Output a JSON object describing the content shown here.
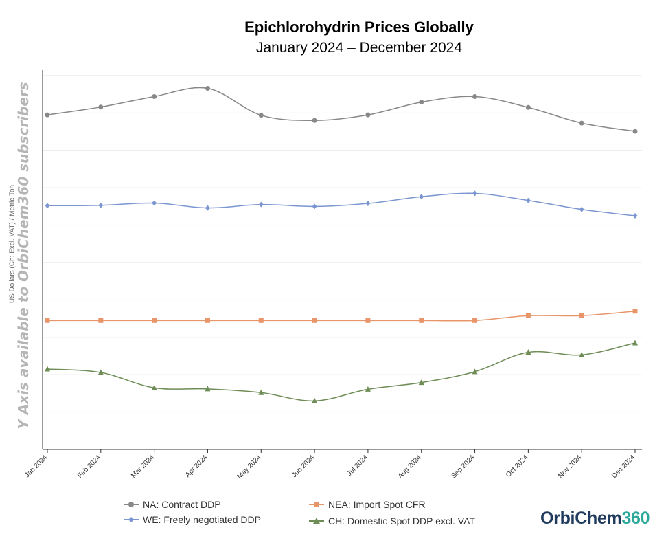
{
  "chart_data": {
    "type": "line",
    "title": "Epichlorohydrin Prices Globally",
    "subtitle": "January 2024 – December 2024",
    "ylabel": "US Dollars (Ch: Excl. VAT) / Metric Ton",
    "watermark": "Y Axis available to OrbiChem360 subscribers",
    "categories": [
      "Jan 2024",
      "Feb 2024",
      "Mar 2024",
      "Apr 2024",
      "May 2024",
      "Jun 2024",
      "Jul 2024",
      "Aug 2024",
      "Sep 2024",
      "Oct 2024",
      "Nov 2024",
      "Dec 2024"
    ],
    "ylim": [
      0,
      10
    ],
    "grid": true,
    "legend_position": "bottom",
    "series": [
      {
        "name": "NA: Contract DDP",
        "color": "#888888",
        "marker": "circle",
        "values": [
          8.95,
          9.16,
          9.44,
          9.66,
          8.94,
          8.8,
          8.95,
          9.29,
          9.44,
          9.15,
          8.73,
          8.51
        ]
      },
      {
        "name": "WE: Freely negotiated DDP",
        "color": "#7b96d0",
        "marker": "diamond",
        "values": [
          6.52,
          6.53,
          6.59,
          6.46,
          6.55,
          6.5,
          6.58,
          6.76,
          6.85,
          6.66,
          6.42,
          6.25
        ]
      },
      {
        "name": "NEA: Import Spot CFR",
        "color": "#e8956a",
        "marker": "square",
        "values": [
          3.45,
          3.45,
          3.45,
          3.45,
          3.45,
          3.45,
          3.45,
          3.45,
          3.45,
          3.58,
          3.58,
          3.7
        ]
      },
      {
        "name": "CH: Domestic Spot DDP excl. VAT",
        "color": "#6e8c55",
        "marker": "triangle",
        "values": [
          2.15,
          2.06,
          1.65,
          1.62,
          1.52,
          1.3,
          1.61,
          1.79,
          2.08,
          2.6,
          2.53,
          2.85
        ]
      }
    ]
  },
  "logo": {
    "part1": "OrbiChem",
    "part2": "360"
  }
}
